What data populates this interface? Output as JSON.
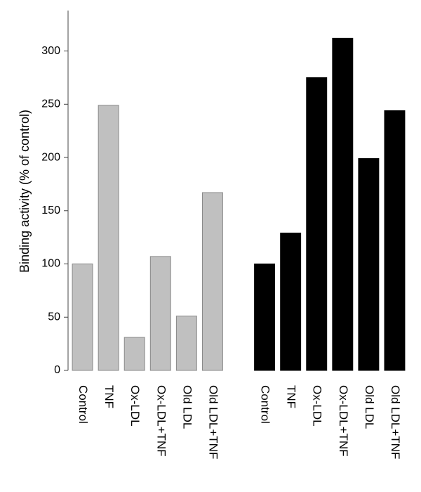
{
  "chart_data": {
    "type": "bar",
    "y_label": "Binding activity (% of control)",
    "categories": [
      "Control",
      "TNF",
      "Ox-LDL",
      "Ox-LDL+TNF",
      "Old LDL",
      "Old LDL+TNF",
      null,
      "Control",
      "TNF",
      "Ox-LDL",
      "Ox-LDL+TNF",
      "Old LDL",
      "Old LDL+TNF"
    ],
    "series": [
      {
        "color": "#c0c0c0",
        "values": [
          100,
          249,
          31,
          107,
          51,
          167,
          null,
          null,
          null,
          null,
          null,
          null,
          null
        ]
      },
      {
        "color": "#000000",
        "values": [
          null,
          null,
          null,
          null,
          null,
          null,
          null,
          100,
          129,
          275,
          312,
          199,
          244
        ]
      }
    ],
    "ylim": [
      0,
      338
    ],
    "yticks": [
      0,
      50,
      100,
      150,
      200,
      250,
      300
    ]
  }
}
